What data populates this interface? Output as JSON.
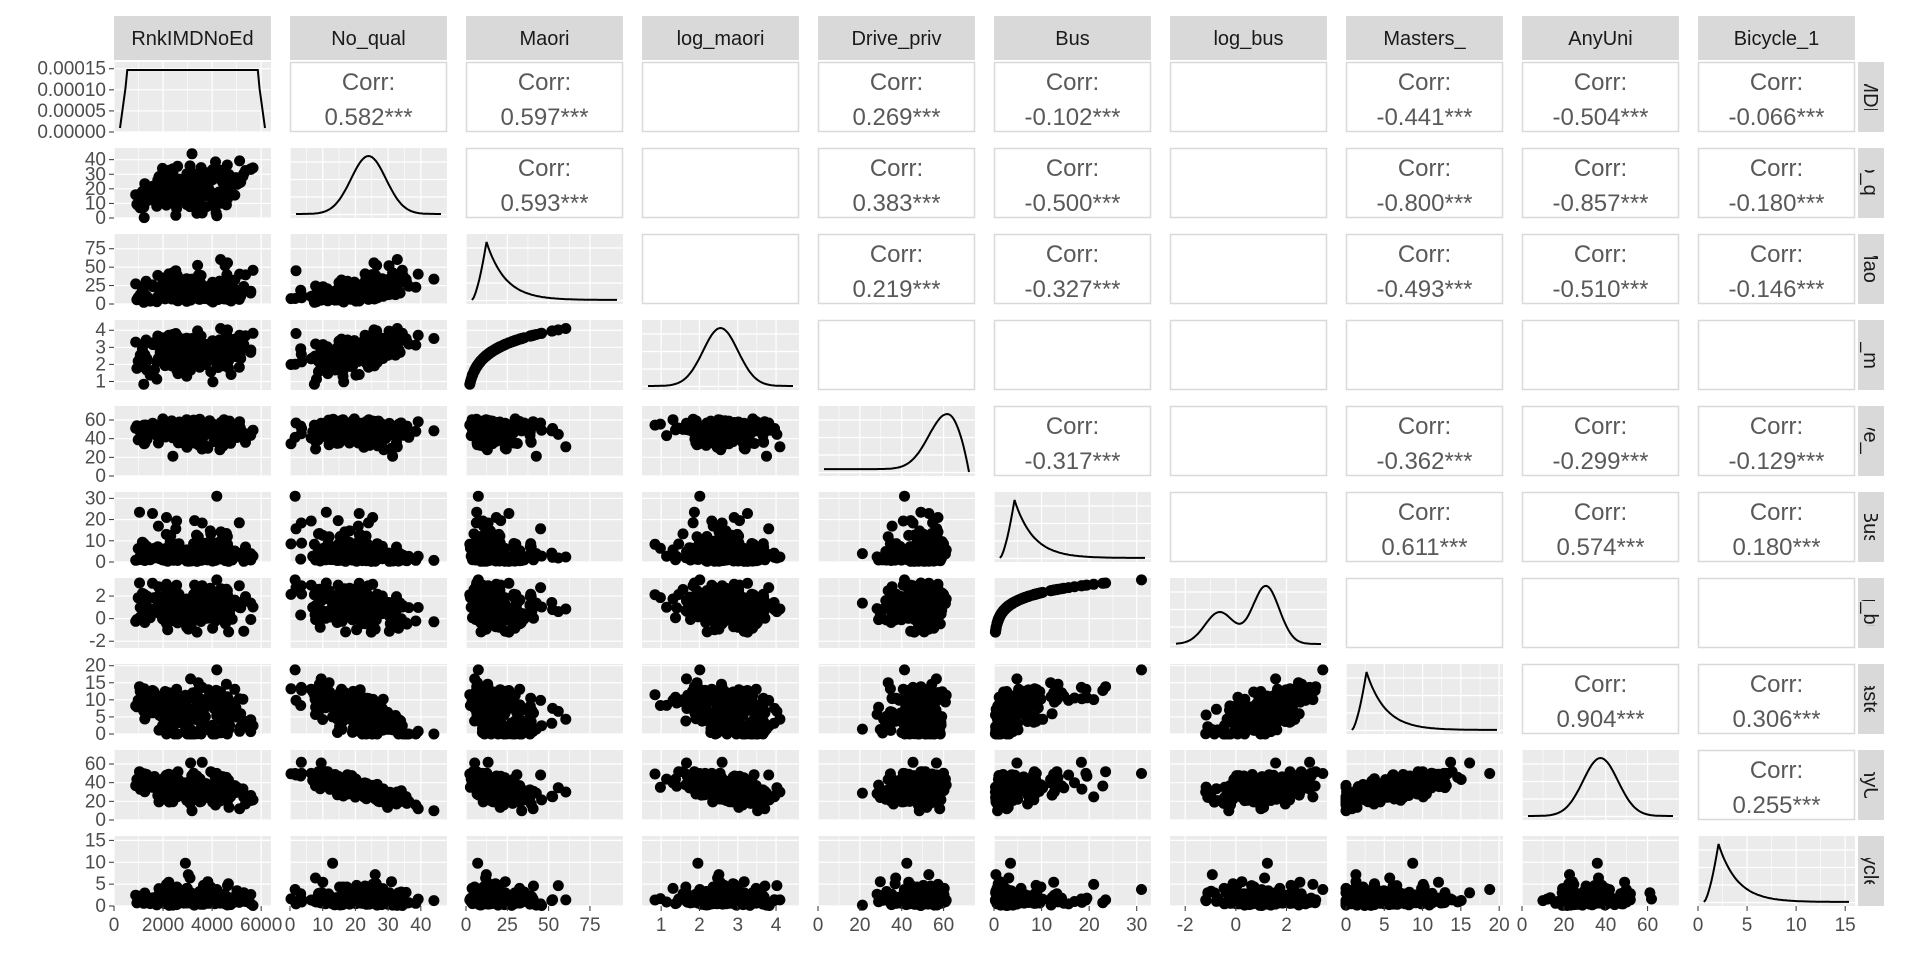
{
  "chart_data": {
    "type": "scatter-matrix",
    "title": "",
    "variables": [
      {
        "name": "RnkIMDNoEd",
        "row_strip": "kIMDNo",
        "range": [
          0,
          6400
        ],
        "ticks": [
          0,
          2000,
          4000,
          6000
        ],
        "tick_labels": [
          "0",
          "2000",
          "4000",
          "6000"
        ]
      },
      {
        "name": "No_qual",
        "row_strip": "No_qua",
        "range": [
          0,
          48
        ],
        "ticks": [
          0,
          10,
          20,
          30,
          40
        ],
        "tick_labels": [
          "0",
          "10",
          "20",
          "30",
          "40"
        ]
      },
      {
        "name": "Maori",
        "row_strip": "Maori",
        "range": [
          0,
          95
        ],
        "ticks": [
          0,
          25,
          50,
          75
        ],
        "tick_labels": [
          "0",
          "25",
          "50",
          "75"
        ]
      },
      {
        "name": "log_maori",
        "row_strip": "og_mao",
        "range": [
          0.5,
          4.6
        ],
        "ticks": [
          1,
          2,
          3,
          4
        ],
        "tick_labels": [
          "1",
          "2",
          "3",
          "4"
        ]
      },
      {
        "name": "Drive_priv",
        "row_strip": "rive_pr",
        "range": [
          0,
          75
        ],
        "ticks": [
          0,
          20,
          40,
          60
        ],
        "tick_labels": [
          "0",
          "20",
          "40",
          "60"
        ]
      },
      {
        "name": "Bus",
        "row_strip": "Bus",
        "range": [
          0,
          33
        ],
        "ticks": [
          0,
          10,
          20,
          30
        ],
        "tick_labels": [
          "0",
          "10",
          "20",
          "30"
        ]
      },
      {
        "name": "log_bus",
        "row_strip": "og_bus",
        "range": [
          -2.6,
          3.6
        ],
        "ticks": [
          -2,
          0,
          2
        ],
        "tick_labels": [
          "-2",
          "0",
          "2"
        ]
      },
      {
        "name": "Masters_",
        "row_strip": "Masters",
        "range": [
          0,
          20.5
        ],
        "ticks": [
          0,
          5,
          10,
          15,
          20
        ],
        "tick_labels": [
          "0",
          "5",
          "10",
          "15",
          "20"
        ]
      },
      {
        "name": "AnyUni",
        "row_strip": "AnyUni",
        "range": [
          0,
          75
        ],
        "ticks": [
          0,
          20,
          40,
          60
        ],
        "tick_labels": [
          "0",
          "20",
          "40",
          "60"
        ]
      },
      {
        "name": "Bicycle_1",
        "row_strip": "icycle_",
        "range": [
          0,
          16
        ],
        "ticks": [
          0,
          5,
          10,
          15
        ],
        "tick_labels": [
          "0",
          "5",
          "10",
          "15"
        ]
      }
    ],
    "diagonal_density_y_ticks": {
      "values": [
        0,
        5e-05,
        0.0001,
        0.00015
      ],
      "labels": [
        "0.00000",
        "0.00005",
        "0.00010",
        "0.00015"
      ],
      "range": [
        0,
        0.000166
      ]
    },
    "corr_label": "Corr:",
    "correlations": [
      {
        "row": "RnkIMDNoEd",
        "col": "No_qual",
        "value": "0.582***"
      },
      {
        "row": "RnkIMDNoEd",
        "col": "Maori",
        "value": "0.597***"
      },
      {
        "row": "RnkIMDNoEd",
        "col": "Drive_priv",
        "value": "0.269***"
      },
      {
        "row": "RnkIMDNoEd",
        "col": "Bus",
        "value": "-0.102***"
      },
      {
        "row": "RnkIMDNoEd",
        "col": "Masters_",
        "value": "-0.441***"
      },
      {
        "row": "RnkIMDNoEd",
        "col": "AnyUni",
        "value": "-0.504***"
      },
      {
        "row": "RnkIMDNoEd",
        "col": "Bicycle_1",
        "value": "-0.066***"
      },
      {
        "row": "No_qual",
        "col": "Maori",
        "value": "0.593***"
      },
      {
        "row": "No_qual",
        "col": "Drive_priv",
        "value": "0.383***"
      },
      {
        "row": "No_qual",
        "col": "Bus",
        "value": "-0.500***"
      },
      {
        "row": "No_qual",
        "col": "Masters_",
        "value": "-0.800***"
      },
      {
        "row": "No_qual",
        "col": "AnyUni",
        "value": "-0.857***"
      },
      {
        "row": "No_qual",
        "col": "Bicycle_1",
        "value": "-0.180***"
      },
      {
        "row": "Maori",
        "col": "Drive_priv",
        "value": "0.219***"
      },
      {
        "row": "Maori",
        "col": "Bus",
        "value": "-0.327***"
      },
      {
        "row": "Maori",
        "col": "Masters_",
        "value": "-0.493***"
      },
      {
        "row": "Maori",
        "col": "AnyUni",
        "value": "-0.510***"
      },
      {
        "row": "Maori",
        "col": "Bicycle_1",
        "value": "-0.146***"
      },
      {
        "row": "Drive_priv",
        "col": "Bus",
        "value": "-0.317***"
      },
      {
        "row": "Drive_priv",
        "col": "Masters_",
        "value": "-0.362***"
      },
      {
        "row": "Drive_priv",
        "col": "AnyUni",
        "value": "-0.299***"
      },
      {
        "row": "Drive_priv",
        "col": "Bicycle_1",
        "value": "-0.129***"
      },
      {
        "row": "Bus",
        "col": "Masters_",
        "value": "0.611***"
      },
      {
        "row": "Bus",
        "col": "AnyUni",
        "value": "0.574***"
      },
      {
        "row": "Bus",
        "col": "Bicycle_1",
        "value": "0.180***"
      },
      {
        "row": "Masters_",
        "col": "AnyUni",
        "value": "0.904***"
      },
      {
        "row": "Masters_",
        "col": "Bicycle_1",
        "value": "0.306***"
      },
      {
        "row": "AnyUni",
        "col": "Bicycle_1",
        "value": "0.255***"
      }
    ],
    "density_peaks": [
      {
        "variable": "RnkIMDNoEd",
        "mode": 3200,
        "shape": "uniform"
      },
      {
        "variable": "No_qual",
        "mode": 20,
        "shape": "normal"
      },
      {
        "variable": "Maori",
        "mode": 10,
        "shape": "right-skewed"
      },
      {
        "variable": "log_maori",
        "mode": 2.6,
        "shape": "normal"
      },
      {
        "variable": "Drive_priv",
        "mode": 63,
        "shape": "left-skewed"
      },
      {
        "variable": "Bus",
        "mode": 0.5,
        "shape": "right-skewed"
      },
      {
        "variable": "log_bus",
        "mode": 1.4,
        "shape": "bimodal"
      },
      {
        "variable": "Masters_",
        "mode": 2.5,
        "shape": "right-skewed"
      },
      {
        "variable": "AnyUni",
        "mode": 34,
        "shape": "normal"
      },
      {
        "variable": "Bicycle_1",
        "mode": 0.8,
        "shape": "right-skewed"
      }
    ],
    "colors": {
      "panel_bg": "#ebebeb",
      "grid": "#ffffff",
      "strip_bg": "#d9d9d9",
      "points": "#000000",
      "text": "#595959",
      "corr_border": "#d9d9d9"
    },
    "grid": true
  }
}
